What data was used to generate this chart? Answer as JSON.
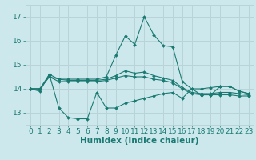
{
  "xlabel": "Humidex (Indice chaleur)",
  "background_color": "#cce8ec",
  "grid_color": "#b8d4d8",
  "line_color": "#1a7a72",
  "x_values": [
    0,
    1,
    2,
    3,
    4,
    5,
    6,
    7,
    8,
    9,
    10,
    11,
    12,
    13,
    14,
    15,
    16,
    17,
    18,
    19,
    20,
    21,
    22,
    23
  ],
  "series": [
    [
      14.0,
      13.9,
      14.6,
      13.2,
      12.8,
      12.75,
      12.75,
      13.85,
      13.2,
      13.2,
      13.4,
      13.5,
      13.6,
      13.7,
      13.8,
      13.85,
      13.6,
      14.0,
      13.75,
      13.75,
      14.1,
      14.1,
      13.9,
      13.8
    ],
    [
      14.0,
      14.0,
      14.6,
      14.4,
      14.4,
      14.4,
      14.4,
      14.4,
      14.5,
      15.4,
      16.2,
      15.85,
      17.0,
      16.25,
      15.8,
      15.75,
      14.3,
      14.0,
      14.0,
      14.05,
      14.1,
      14.1,
      13.9,
      13.8
    ],
    [
      14.0,
      14.0,
      14.5,
      14.4,
      14.35,
      14.35,
      14.35,
      14.35,
      14.4,
      14.55,
      14.75,
      14.65,
      14.7,
      14.55,
      14.45,
      14.35,
      14.05,
      13.85,
      13.8,
      13.8,
      13.85,
      13.85,
      13.8,
      13.75
    ],
    [
      14.0,
      14.0,
      14.5,
      14.3,
      14.3,
      14.3,
      14.3,
      14.3,
      14.35,
      14.45,
      14.55,
      14.5,
      14.5,
      14.4,
      14.35,
      14.25,
      14.0,
      13.8,
      13.75,
      13.75,
      13.75,
      13.75,
      13.7,
      13.7
    ]
  ],
  "ylim": [
    12.5,
    17.5
  ],
  "xlim": [
    -0.5,
    23.5
  ],
  "yticks": [
    13,
    14,
    15,
    16,
    17
  ],
  "xticks": [
    0,
    1,
    2,
    3,
    4,
    5,
    6,
    7,
    8,
    9,
    10,
    11,
    12,
    13,
    14,
    15,
    16,
    17,
    18,
    19,
    20,
    21,
    22,
    23
  ],
  "tick_fontsize": 6.5,
  "xlabel_fontsize": 7.5
}
